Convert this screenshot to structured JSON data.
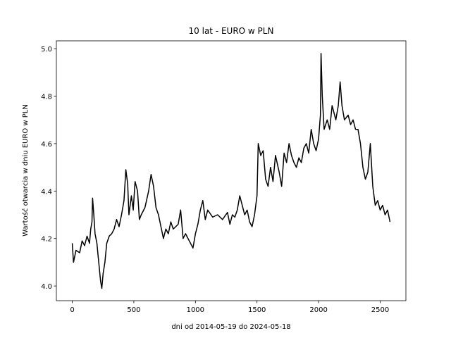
{
  "chart_data": {
    "type": "line",
    "title": "10 lat - EURO w PLN",
    "xlabel": "dni od 2014-05-19 do 2024-05-18",
    "ylabel": "Wartość otwarcia w dniu EURO w PLN",
    "x": [
      0,
      10,
      30,
      60,
      80,
      100,
      120,
      140,
      150,
      160,
      165,
      175,
      185,
      200,
      215,
      230,
      240,
      250,
      265,
      280,
      300,
      320,
      340,
      360,
      380,
      400,
      420,
      435,
      450,
      460,
      480,
      495,
      510,
      530,
      545,
      560,
      590,
      620,
      640,
      660,
      680,
      700,
      720,
      740,
      760,
      780,
      800,
      820,
      860,
      880,
      900,
      920,
      960,
      980,
      1000,
      1020,
      1040,
      1060,
      1080,
      1100,
      1140,
      1180,
      1220,
      1260,
      1280,
      1300,
      1320,
      1340,
      1360,
      1380,
      1400,
      1420,
      1440,
      1460,
      1480,
      1500,
      1510,
      1530,
      1550,
      1570,
      1590,
      1610,
      1630,
      1650,
      1680,
      1700,
      1720,
      1740,
      1760,
      1780,
      1800,
      1820,
      1840,
      1860,
      1880,
      1900,
      1920,
      1940,
      1960,
      1980,
      2000,
      2015,
      2020,
      2030,
      2045,
      2070,
      2090,
      2110,
      2140,
      2160,
      2175,
      2190,
      2210,
      2240,
      2260,
      2280,
      2300,
      2320,
      2340,
      2360,
      2380,
      2400,
      2420,
      2440,
      2460,
      2480,
      2500,
      2520,
      2540,
      2560,
      2580
    ],
    "series": [
      {
        "color": "#000000",
        "values": [
          4.18,
          4.1,
          4.15,
          4.14,
          4.19,
          4.17,
          4.21,
          4.18,
          4.24,
          4.27,
          4.37,
          4.3,
          4.22,
          4.18,
          4.1,
          4.02,
          3.99,
          4.05,
          4.1,
          4.18,
          4.21,
          4.22,
          4.24,
          4.28,
          4.25,
          4.3,
          4.36,
          4.49,
          4.43,
          4.3,
          4.38,
          4.32,
          4.44,
          4.4,
          4.28,
          4.3,
          4.33,
          4.4,
          4.47,
          4.42,
          4.33,
          4.3,
          4.25,
          4.2,
          4.24,
          4.22,
          4.27,
          4.24,
          4.26,
          4.32,
          4.2,
          4.22,
          4.18,
          4.16,
          4.22,
          4.26,
          4.32,
          4.36,
          4.28,
          4.32,
          4.29,
          4.3,
          4.28,
          4.31,
          4.26,
          4.3,
          4.29,
          4.32,
          4.38,
          4.34,
          4.3,
          4.32,
          4.27,
          4.25,
          4.3,
          4.38,
          4.6,
          4.55,
          4.57,
          4.45,
          4.42,
          4.5,
          4.44,
          4.55,
          4.48,
          4.42,
          4.56,
          4.52,
          4.6,
          4.55,
          4.52,
          4.5,
          4.54,
          4.52,
          4.58,
          4.6,
          4.56,
          4.66,
          4.6,
          4.57,
          4.62,
          4.72,
          4.98,
          4.8,
          4.66,
          4.7,
          4.66,
          4.76,
          4.7,
          4.76,
          4.86,
          4.76,
          4.7,
          4.72,
          4.68,
          4.7,
          4.66,
          4.66,
          4.6,
          4.5,
          4.45,
          4.48,
          4.6,
          4.42,
          4.34,
          4.36,
          4.32,
          4.34,
          4.3,
          4.32,
          4.27
        ]
      }
    ],
    "xlim": [
      -129,
      2709
    ],
    "xticks": [
      0,
      500,
      1000,
      1500,
      2000,
      2500
    ],
    "ylim": [
      3.938,
      5.033
    ],
    "yticks": [
      {
        "value": 4,
        "label": "4.0"
      },
      4.2,
      4.4,
      4.6,
      4.8,
      {
        "value": 5,
        "label": "5.0"
      }
    ]
  }
}
